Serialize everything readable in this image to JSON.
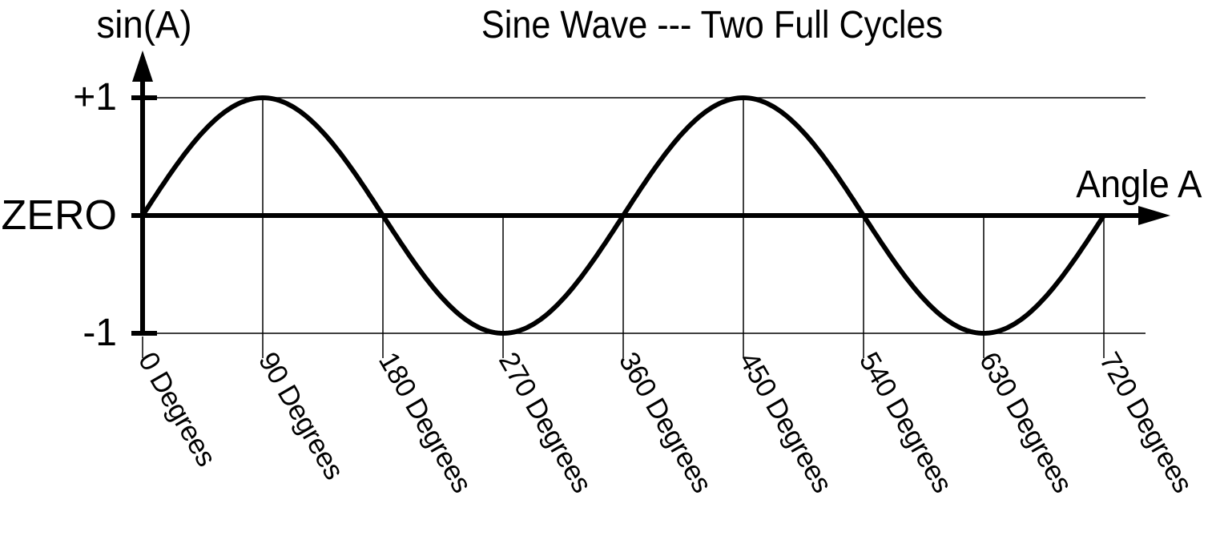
{
  "chart_data": {
    "type": "line",
    "title": "Sine Wave --- Two Full Cycles",
    "xlabel": "Angle A",
    "ylabel": "sin(A)",
    "function": "sin",
    "x_unit": "degrees",
    "cycles": 2,
    "x": [
      0,
      90,
      180,
      270,
      360,
      450,
      540,
      630,
      720
    ],
    "y": [
      0,
      1,
      0,
      -1,
      0,
      1,
      0,
      -1,
      0
    ],
    "xlim": [
      0,
      720
    ],
    "ylim": [
      -1,
      1
    ],
    "grid": true,
    "legend": false,
    "y_ticks": [
      {
        "value": 1,
        "label": "+1"
      },
      {
        "value": 0,
        "label": "ZERO"
      },
      {
        "value": -1,
        "label": "-1"
      }
    ],
    "x_ticks": [
      {
        "deg": 0,
        "label": "0 Degrees"
      },
      {
        "deg": 90,
        "label": "90 Degrees"
      },
      {
        "deg": 180,
        "label": "180 Degrees"
      },
      {
        "deg": 270,
        "label": "270 Degrees"
      },
      {
        "deg": 360,
        "label": "360 Degrees"
      },
      {
        "deg": 450,
        "label": "450 Degrees"
      },
      {
        "deg": 540,
        "label": "540 Degrees"
      },
      {
        "deg": 630,
        "label": "630 Degrees"
      },
      {
        "deg": 720,
        "label": "720 Degrees"
      }
    ],
    "colors": {
      "line": "#000000",
      "grid": "#000000",
      "text": "#000000",
      "background": "#ffffff"
    }
  }
}
